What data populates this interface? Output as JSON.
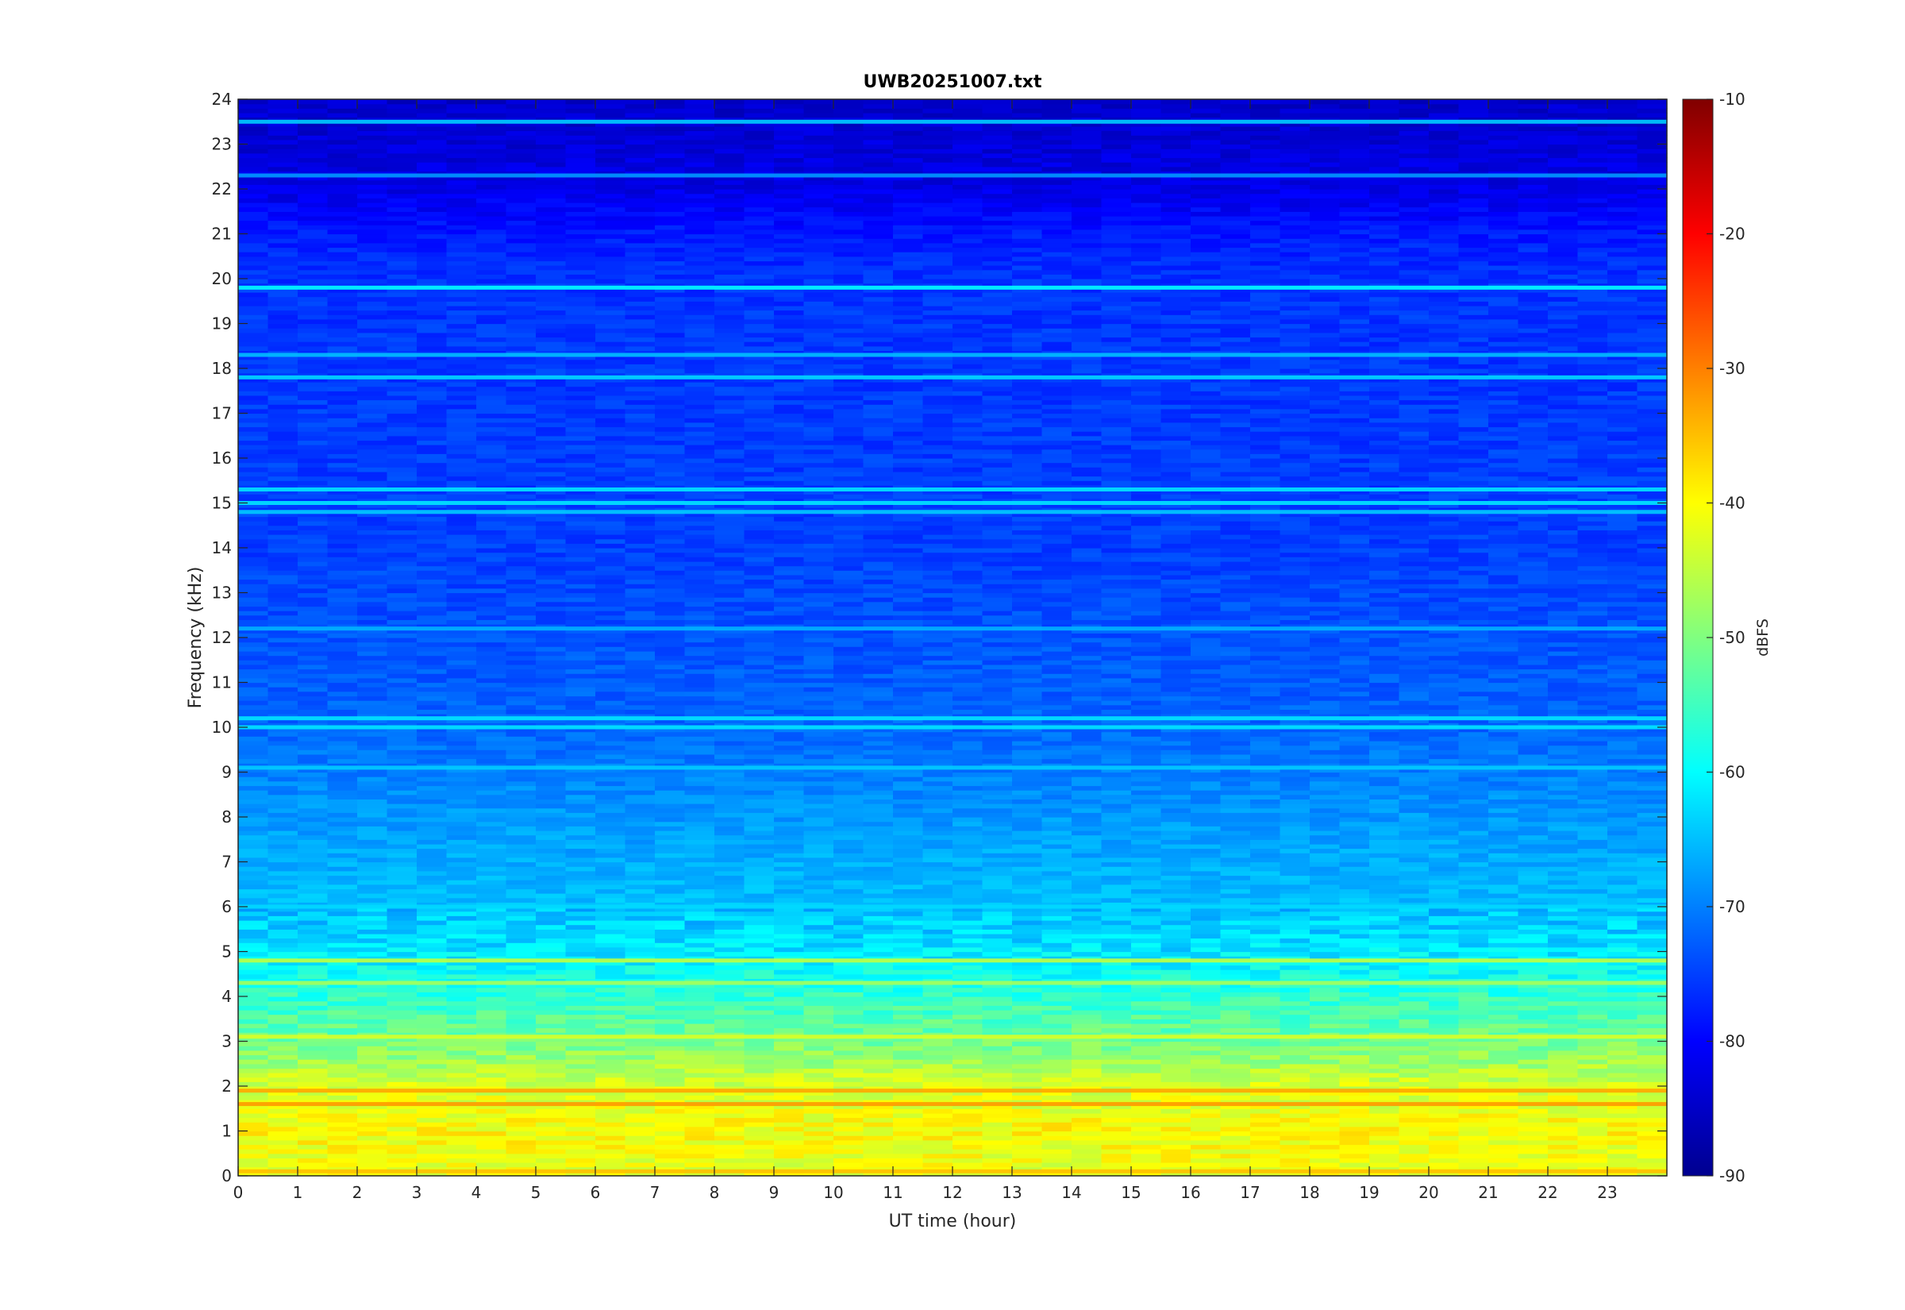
{
  "chart_data": {
    "type": "heatmap",
    "title": "UWB20251007.txt",
    "xlabel": "UT time (hour)",
    "ylabel": "Frequency (kHz)",
    "xlim": [
      0,
      24
    ],
    "ylim": [
      0,
      24
    ],
    "x_ticks": [
      "0",
      "1",
      "2",
      "3",
      "4",
      "5",
      "6",
      "7",
      "8",
      "9",
      "10",
      "11",
      "12",
      "13",
      "14",
      "15",
      "16",
      "17",
      "18",
      "19",
      "20",
      "21",
      "22",
      "23"
    ],
    "y_ticks": [
      "0",
      "1",
      "2",
      "3",
      "4",
      "5",
      "6",
      "7",
      "8",
      "9",
      "10",
      "11",
      "12",
      "13",
      "14",
      "15",
      "16",
      "17",
      "18",
      "19",
      "20",
      "21",
      "22",
      "23",
      "24"
    ],
    "colormap": "jet",
    "colorbar": {
      "label": "dBFS",
      "range": [
        -90,
        -10
      ],
      "ticks": [
        "-10",
        "-20",
        "-30",
        "-40",
        "-50",
        "-60",
        "-70",
        "-80",
        "-90"
      ]
    },
    "background_level_by_frequency": [
      {
        "freq_khz": 0,
        "dbfs": -42
      },
      {
        "freq_khz": 1,
        "dbfs": -40
      },
      {
        "freq_khz": 2,
        "dbfs": -43
      },
      {
        "freq_khz": 2.5,
        "dbfs": -47
      },
      {
        "freq_khz": 3,
        "dbfs": -51
      },
      {
        "freq_khz": 4,
        "dbfs": -56
      },
      {
        "freq_khz": 5,
        "dbfs": -62
      },
      {
        "freq_khz": 6,
        "dbfs": -65
      },
      {
        "freq_khz": 8,
        "dbfs": -68
      },
      {
        "freq_khz": 10,
        "dbfs": -72
      },
      {
        "freq_khz": 14,
        "dbfs": -75
      },
      {
        "freq_khz": 20,
        "dbfs": -76
      },
      {
        "freq_khz": 21,
        "dbfs": -78
      },
      {
        "freq_khz": 22,
        "dbfs": -82
      },
      {
        "freq_khz": 24,
        "dbfs": -84
      }
    ],
    "persistent_lines": [
      {
        "freq_khz": 19.8,
        "dbfs": -60
      },
      {
        "freq_khz": 18.3,
        "dbfs": -65
      },
      {
        "freq_khz": 17.8,
        "dbfs": -63
      },
      {
        "freq_khz": 23.5,
        "dbfs": -64
      },
      {
        "freq_khz": 22.3,
        "dbfs": -68
      },
      {
        "freq_khz": 15.3,
        "dbfs": -62
      },
      {
        "freq_khz": 15.0,
        "dbfs": -62
      },
      {
        "freq_khz": 14.8,
        "dbfs": -64
      },
      {
        "freq_khz": 12.2,
        "dbfs": -66
      },
      {
        "freq_khz": 10.2,
        "dbfs": -62
      },
      {
        "freq_khz": 10.0,
        "dbfs": -62
      },
      {
        "freq_khz": 9.1,
        "dbfs": -64
      },
      {
        "freq_khz": 6.0,
        "dbfs": -63
      },
      {
        "freq_khz": 4.8,
        "dbfs": -45
      },
      {
        "freq_khz": 4.3,
        "dbfs": -47
      },
      {
        "freq_khz": 3.1,
        "dbfs": -43
      },
      {
        "freq_khz": 1.9,
        "dbfs": -33
      },
      {
        "freq_khz": 1.6,
        "dbfs": -32
      },
      {
        "freq_khz": 0.1,
        "dbfs": -35
      }
    ]
  }
}
